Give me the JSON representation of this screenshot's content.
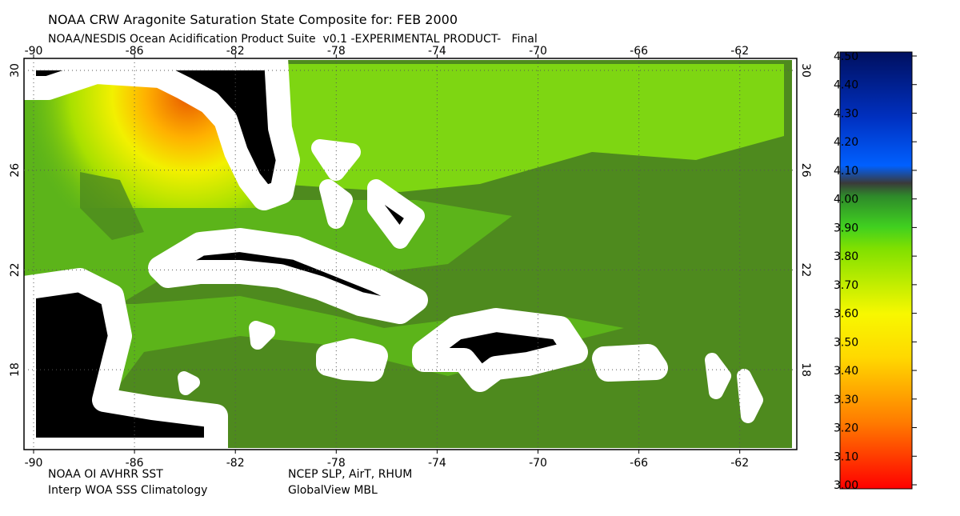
{
  "header": {
    "title": "NOAA CRW Aragonite Saturation State Composite for: FEB 2000",
    "subtitle": "NOAA/NESDIS Ocean Acidification Product Suite  v0.1 -EXPERIMENTAL PRODUCT-   Final"
  },
  "map": {
    "lon_labels": [
      "-90",
      "-86",
      "-82",
      "-78",
      "-74",
      "-70",
      "-66",
      "-62"
    ],
    "lat_labels": [
      "30",
      "26",
      "22",
      "18"
    ]
  },
  "colorbar": {
    "labels": [
      "4.50",
      "4.40",
      "4.30",
      "4.20",
      "4.10",
      "4.00",
      "3.90",
      "3.80",
      "3.70",
      "3.60",
      "3.50",
      "3.40",
      "3.30",
      "3.20",
      "3.10",
      "3.00"
    ]
  },
  "footer": {
    "left": [
      "NOAA OI AVHRR SST",
      "Interp WOA SSS Climatology"
    ],
    "right": [
      "NCEP SLP, AirT, RHUM",
      "GlobalView MBL"
    ]
  }
}
